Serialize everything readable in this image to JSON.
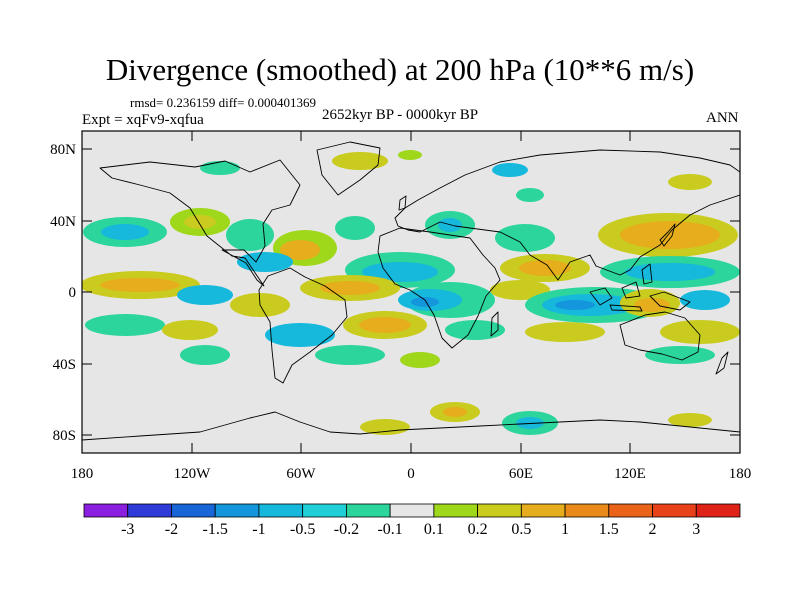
{
  "title": "Divergence (smoothed) at 200 hPa (10**6 m/s)",
  "stats": "rmsd= 0.236159 diff= 0.000401369",
  "experiment": "Expt = xqFv9-xqfua",
  "period": "2652kyr BP - 0000kyr BP",
  "season": "ANN",
  "y_axis_labels": [
    "80N",
    "40N",
    "0",
    "40S",
    "80S"
  ],
  "x_axis_labels": [
    "180",
    "120W",
    "60W",
    "0",
    "60E",
    "120E",
    "180"
  ],
  "colorbar_labels": [
    "-3",
    "-2",
    "-1.5",
    "-1",
    "-0.5",
    "-0.2",
    "-0.1",
    "0.1",
    "0.2",
    "0.5",
    "1",
    "1.5",
    "2",
    "3"
  ],
  "colorbar_colors": [
    "#8b1fe0",
    "#2f3bd9",
    "#1765d6",
    "#1496dc",
    "#16b8dc",
    "#20d0d6",
    "#2cd59b",
    "#e6e6e6",
    "#9fd71a",
    "#c9cc1e",
    "#e6ad1c",
    "#ea8a1a",
    "#ea6318",
    "#e8421a",
    "#e02319"
  ],
  "map_background": "#e6e6e6"
}
